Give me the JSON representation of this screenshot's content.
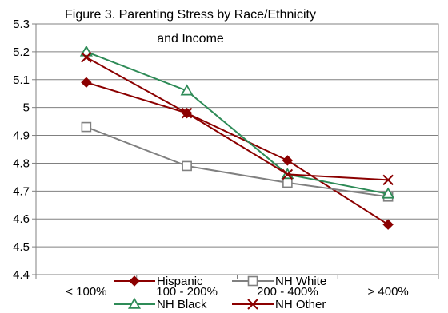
{
  "chart_data": {
    "type": "line",
    "title": "Figure 3. Parenting Stress by Race/Ethnicity and Income",
    "title_lines": [
      "Figure 3. Parenting Stress by Race/Ethnicity",
      "and Income"
    ],
    "xlabel": "",
    "ylabel": "",
    "categories": [
      "< 100%",
      "100 - 200%",
      "200 - 400%",
      "> 400%"
    ],
    "ylim": [
      4.4,
      5.3
    ],
    "yticks": [
      "4.4",
      "4.5",
      "4.6",
      "4.7",
      "4.8",
      "4.9",
      "5",
      "5.1",
      "5.2",
      "5.3"
    ],
    "grid": "horizontal",
    "legend_position": "bottom",
    "series": [
      {
        "name": "Hispanic",
        "values": [
          5.09,
          4.98,
          4.81,
          4.58
        ],
        "color": "#8B0000",
        "marker": "diamond"
      },
      {
        "name": "NH White",
        "values": [
          4.93,
          4.79,
          4.73,
          4.68
        ],
        "color": "#808080",
        "marker": "square"
      },
      {
        "name": "NH Black",
        "values": [
          5.2,
          5.06,
          4.76,
          4.69
        ],
        "color": "#2E8B57",
        "marker": "triangle"
      },
      {
        "name": "NH Other",
        "values": [
          5.18,
          4.98,
          4.76,
          4.74
        ],
        "color": "#8B0000",
        "marker": "x"
      }
    ]
  }
}
